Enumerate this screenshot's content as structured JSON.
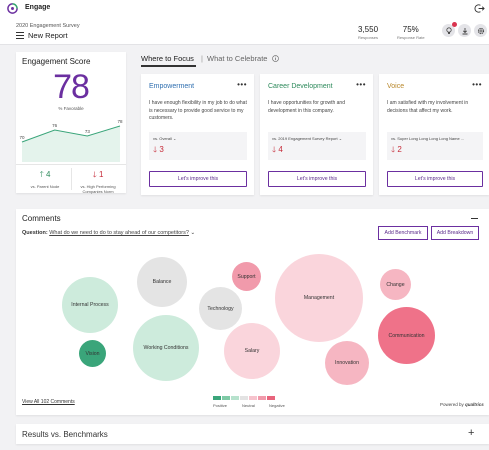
{
  "app": {
    "name": "Engage"
  },
  "header": {
    "survey_name": "2020 Engagement Survey",
    "report_title": "New Report",
    "responses_value": "3,550",
    "responses_label": "Responses",
    "response_rate_value": "75%",
    "response_rate_label": "Response Rate"
  },
  "engagement": {
    "title": "Engagement Score",
    "score": "78",
    "score_label": "% Favorable",
    "trend_points": [
      70,
      76,
      73,
      78
    ],
    "trend_labels": [
      "70",
      "76",
      "73",
      "78"
    ],
    "vs_parent_value": "4",
    "vs_parent_label": "vs. Parent Node",
    "vs_high_value": "1",
    "vs_high_label_1": "vs. High Performing",
    "vs_high_label_2": "Companies Norm"
  },
  "tabs": {
    "where_to_focus": "Where to Focus",
    "separator": "|",
    "what_to_celebrate": "What to Celebrate"
  },
  "focus_cards": [
    {
      "title": "Empowerment",
      "title_color": "#2f6fb0",
      "text": "I have enough flexibility in my job to do what is necessary to provide good service to my customers.",
      "vs": "vs.  Overall ⌄",
      "delta": "3",
      "button": "Let's improve this"
    },
    {
      "title": "Career Development",
      "title_color": "#2d8a5b",
      "text": "I have opportunities for growth and development in this company.",
      "vs": "vs.  2019 Engagement Survey Report ⌄",
      "delta": "4",
      "button": "Let's improve this"
    },
    {
      "title": "Voice",
      "title_color": "#b8872a",
      "text": "I am satisfied with my involvement in decisions that affect my work.",
      "vs": "vs.  Super Long Long Long Long Name ...",
      "delta": "2",
      "button": "Let's improve this"
    }
  ],
  "comments": {
    "title": "Comments",
    "question_label": "Question:",
    "question_text": "What do we need to do to stay ahead of our competitors?",
    "add_benchmark": "Add Benchmark",
    "add_breakdown": "Add Breakdown",
    "view_all": "View All 102 Comments",
    "legend": {
      "positive": "Positive",
      "neutral": "Neutral",
      "negative": "Negative"
    },
    "legend_colors": [
      "#3aa57a",
      "#7fcaa6",
      "#b7e2cd",
      "#e3e3e3",
      "#f6c3cd",
      "#f19aab",
      "#e8647c"
    ],
    "powered_by": "Powered by ",
    "powered_brand": "qualtrics",
    "topics": [
      {
        "label": "Internal Process",
        "color": "#cdebdc"
      },
      {
        "label": "Vision",
        "color": "#3aa57a"
      },
      {
        "label": "Balance",
        "color": "#e4e4e4"
      },
      {
        "label": "Working Conditions",
        "color": "#cdebdc"
      },
      {
        "label": "Technology",
        "color": "#e4e4e4"
      },
      {
        "label": "Support",
        "color": "#f19aab"
      },
      {
        "label": "Salary",
        "color": "#fad5dc"
      },
      {
        "label": "Management",
        "color": "#fad5dc"
      },
      {
        "label": "Innovation",
        "color": "#f6b6c2"
      },
      {
        "label": "Change",
        "color": "#f6b6c2"
      },
      {
        "label": "Communication",
        "color": "#ef7289"
      }
    ]
  },
  "benchmarks": {
    "title": "Results vs. Benchmarks"
  }
}
